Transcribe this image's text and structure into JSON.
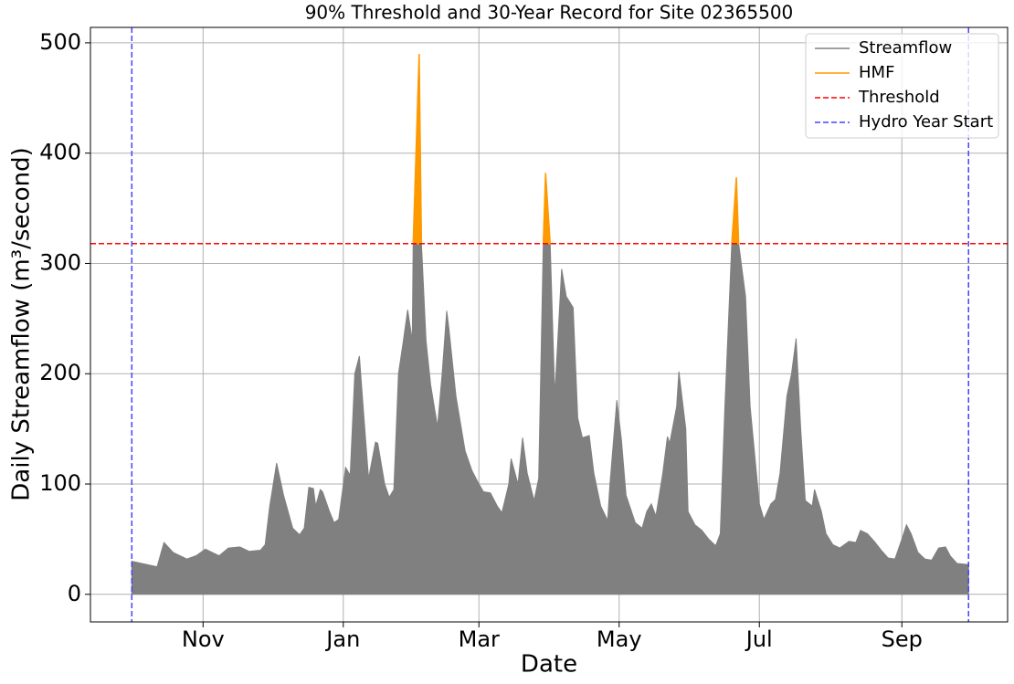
{
  "chart_data": {
    "type": "area",
    "title": "90% Threshold and 30-Year Record for Site 02365500",
    "x_label": "Date",
    "y_label": "Daily Streamflow (m³/second)",
    "xlim": [
      -18,
      381
    ],
    "ylim": [
      -25,
      514
    ],
    "xticks": [
      {
        "value": 31,
        "label": "Nov"
      },
      {
        "value": 92,
        "label": "Jan"
      },
      {
        "value": 151,
        "label": "Mar"
      },
      {
        "value": 212,
        "label": "May"
      },
      {
        "value": 273,
        "label": "Jul"
      },
      {
        "value": 335,
        "label": "Sep"
      }
    ],
    "yticks": [
      0,
      100,
      200,
      300,
      400,
      500
    ],
    "grid": true,
    "legend": "upper right",
    "x": [
      0,
      11,
      14,
      18,
      24,
      28,
      32,
      38,
      42,
      47,
      51,
      56,
      58,
      60,
      63,
      66,
      70,
      73,
      75,
      77,
      79,
      80,
      82,
      83,
      86,
      88,
      90,
      93,
      95,
      97,
      99,
      101,
      103,
      106,
      107,
      110,
      112,
      114,
      116,
      118,
      120,
      122,
      122.4,
      125,
      126,
      128,
      130,
      133,
      135,
      137,
      138,
      141,
      145,
      148,
      151,
      153,
      156,
      159,
      161,
      164,
      165,
      168,
      170,
      172,
      175,
      177,
      179,
      180,
      182,
      184,
      187,
      189,
      192,
      194,
      196,
      199,
      201,
      204,
      207,
      208,
      211,
      213,
      215,
      219,
      222,
      224,
      226,
      228,
      231,
      233,
      234,
      237,
      238,
      241,
      242,
      245,
      248,
      251,
      254,
      256,
      258,
      261,
      263,
      264,
      267,
      269,
      273,
      275,
      278,
      280,
      282,
      285,
      287,
      289,
      291,
      293,
      296,
      297,
      300,
      302,
      305,
      308,
      312,
      315,
      317,
      320,
      323,
      326,
      329,
      332,
      335,
      337,
      339,
      342,
      345,
      348,
      351,
      354,
      356,
      359,
      364
    ],
    "series": [
      {
        "name": "Streamflow",
        "color": "#808080",
        "values": [
          30,
          25,
          47,
          38,
          32,
          35,
          41,
          35,
          42,
          43,
          39,
          40,
          45,
          80,
          119,
          90,
          60,
          54,
          60,
          97,
          96,
          80,
          95,
          93,
          75,
          65,
          68,
          115,
          108,
          200,
          216,
          160,
          105,
          138,
          137,
          100,
          88,
          95,
          200,
          228,
          258,
          230,
          318,
          490,
          318,
          230,
          190,
          152,
          200,
          257,
          240,
          180,
          130,
          112,
          100,
          93,
          92,
          80,
          74,
          100,
          123,
          100,
          142,
          110,
          85,
          105,
          318,
          382,
          318,
          180,
          295,
          270,
          260,
          160,
          142,
          144,
          110,
          80,
          67,
          100,
          176,
          140,
          90,
          65,
          60,
          75,
          82,
          71,
          110,
          143,
          137,
          170,
          202,
          150,
          75,
          63,
          58,
          50,
          44,
          55,
          170,
          318,
          378,
          318,
          270,
          170,
          82,
          68,
          82,
          86,
          110,
          180,
          200,
          232,
          150,
          85,
          80,
          95,
          75,
          55,
          45,
          42,
          48,
          47,
          58,
          55,
          48,
          40,
          33,
          32,
          50,
          63,
          55,
          38,
          32,
          31,
          42,
          43,
          35,
          28,
          27
        ]
      },
      {
        "name": "HMF",
        "color": "#ff9900",
        "values": [
          null,
          null,
          null,
          null,
          null,
          null,
          null,
          null,
          null,
          null,
          null,
          null,
          null,
          null,
          null,
          null,
          null,
          null,
          null,
          null,
          null,
          null,
          null,
          null,
          null,
          null,
          null,
          null,
          null,
          null,
          null,
          null,
          null,
          null,
          null,
          null,
          null,
          null,
          null,
          null,
          null,
          null,
          318,
          490,
          318,
          null,
          null,
          null,
          null,
          null,
          null,
          null,
          null,
          null,
          null,
          null,
          null,
          null,
          null,
          null,
          null,
          null,
          null,
          null,
          null,
          null,
          318,
          382,
          318,
          null,
          null,
          null,
          null,
          null,
          null,
          null,
          null,
          null,
          null,
          null,
          null,
          null,
          null,
          null,
          null,
          null,
          null,
          null,
          null,
          null,
          null,
          null,
          null,
          null,
          null,
          null,
          null,
          null,
          null,
          null,
          null,
          318,
          378,
          318,
          null,
          null,
          null,
          null,
          null,
          null,
          null,
          null,
          null,
          null,
          null,
          null,
          null,
          null,
          null,
          null,
          null,
          null,
          null,
          null,
          null,
          null,
          null,
          null,
          null,
          null,
          null,
          null,
          null,
          null,
          null,
          null,
          null,
          null,
          null,
          null,
          null
        ]
      }
    ],
    "threshold": {
      "name": "Threshold",
      "color": "#ff0000",
      "value": 318
    },
    "year_start": {
      "name": "Hydro Year Start",
      "color": "#4444ff",
      "x": [
        0,
        364
      ]
    }
  }
}
